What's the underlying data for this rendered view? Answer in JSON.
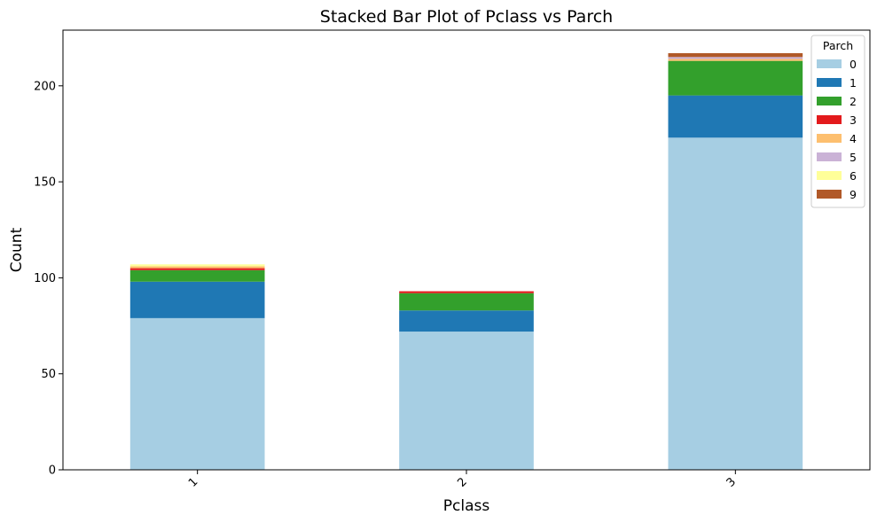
{
  "chart_data": {
    "type": "bar",
    "stacked": true,
    "title": "Stacked Bar Plot of Pclass vs Parch",
    "xlabel": "Pclass",
    "ylabel": "Count",
    "categories": [
      "1",
      "2",
      "3"
    ],
    "ylim": [
      0,
      229
    ],
    "yticks": [
      0,
      50,
      100,
      150,
      200
    ],
    "grid": false,
    "legend": {
      "title": "Parch",
      "placement": "top-right"
    },
    "series": [
      {
        "name": "0",
        "color": "#a6cee3",
        "values": [
          79,
          72,
          173
        ]
      },
      {
        "name": "1",
        "color": "#1f78b4",
        "values": [
          19,
          11,
          22
        ]
      },
      {
        "name": "2",
        "color": "#33a02c",
        "values": [
          6,
          9,
          18
        ]
      },
      {
        "name": "3",
        "color": "#e31a1c",
        "values": [
          1,
          1,
          0
        ]
      },
      {
        "name": "4",
        "color": "#fdbf6f",
        "values": [
          1,
          0,
          1
        ]
      },
      {
        "name": "5",
        "color": "#cab2d6",
        "values": [
          0,
          0,
          1
        ]
      },
      {
        "name": "6",
        "color": "#ffff99",
        "values": [
          1,
          0,
          0
        ]
      },
      {
        "name": "9",
        "color": "#b15928",
        "values": [
          0,
          0,
          2
        ]
      }
    ]
  }
}
